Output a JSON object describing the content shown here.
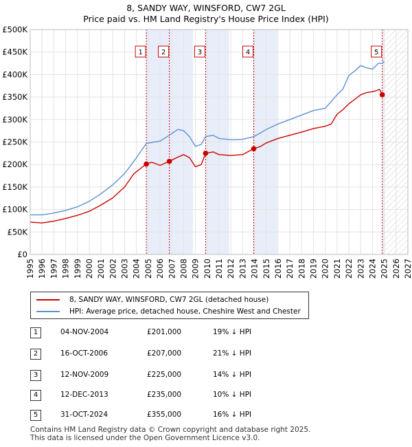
{
  "header": {
    "title": "8, SANDY WAY, WINSFORD, CW7 2GL",
    "subtitle": "Price paid vs. HM Land Registry's House Price Index (HPI)"
  },
  "chart_data": {
    "type": "line",
    "title": "8, SANDY WAY, WINSFORD, CW7 2GL",
    "subtitle": "Price paid vs. HM Land Registry's House Price Index (HPI)",
    "xlabel": "",
    "ylabel": "",
    "xlim": [
      1995,
      2027
    ],
    "ylim": [
      0,
      500000
    ],
    "x_ticks": [
      "1995",
      "1996",
      "1997",
      "1998",
      "1999",
      "2000",
      "2001",
      "2002",
      "2003",
      "2004",
      "2005",
      "2006",
      "2007",
      "2008",
      "2009",
      "2010",
      "2011",
      "2012",
      "2013",
      "2014",
      "2015",
      "2016",
      "2017",
      "2018",
      "2019",
      "2020",
      "2021",
      "2022",
      "2023",
      "2024",
      "2025",
      "2026",
      "2027"
    ],
    "y_ticks": [
      {
        "value": 0,
        "label": "£0"
      },
      {
        "value": 50000,
        "label": "£50K"
      },
      {
        "value": 100000,
        "label": "£100K"
      },
      {
        "value": 150000,
        "label": "£150K"
      },
      {
        "value": 200000,
        "label": "£200K"
      },
      {
        "value": 250000,
        "label": "£250K"
      },
      {
        "value": 300000,
        "label": "£300K"
      },
      {
        "value": 350000,
        "label": "£350K"
      },
      {
        "value": 400000,
        "label": "£400K"
      },
      {
        "value": 450000,
        "label": "£450K"
      },
      {
        "value": 500000,
        "label": "£500K"
      }
    ],
    "grid": true,
    "legend_position": "below chart",
    "hatched_after": 2025.0,
    "series": [
      {
        "name": "8, SANDY WAY, WINSFORD, CW7 2GL (detached house)",
        "color": "#cc0000",
        "x": [
          1995.0,
          1996.0,
          1997.0,
          1998.0,
          1999.0,
          2000.0,
          2001.0,
          2002.0,
          2003.0,
          2003.8,
          2004.84,
          2005.3,
          2006.0,
          2006.79,
          2007.4,
          2008.0,
          2008.5,
          2009.0,
          2009.5,
          2009.86,
          2010.5,
          2011.0,
          2012.0,
          2013.0,
          2013.94,
          2014.5,
          2015.0,
          2016.0,
          2017.0,
          2018.0,
          2019.0,
          2020.0,
          2020.5,
          2021.0,
          2021.5,
          2022.0,
          2022.5,
          2023.0,
          2023.5,
          2024.0,
          2024.3,
          2024.6,
          2024.83
        ],
        "y": [
          72000,
          70000,
          74000,
          80000,
          87000,
          96000,
          110000,
          126000,
          150000,
          180000,
          201000,
          205000,
          198000,
          207000,
          215000,
          222000,
          215000,
          195000,
          200000,
          225000,
          228000,
          222000,
          220000,
          222000,
          235000,
          240000,
          248000,
          258000,
          265000,
          272000,
          280000,
          285000,
          290000,
          312000,
          322000,
          335000,
          345000,
          355000,
          360000,
          362000,
          364000,
          367000,
          355000
        ]
      },
      {
        "name": "HPI: Average price, detached house, Cheshire West and Chester",
        "color": "#5b8fd6",
        "x": [
          1995.0,
          1996.0,
          1997.0,
          1998.0,
          1999.0,
          2000.0,
          2001.0,
          2002.0,
          2003.0,
          2004.0,
          2004.84,
          2005.5,
          2006.0,
          2006.79,
          2007.5,
          2008.0,
          2008.5,
          2009.0,
          2009.5,
          2009.86,
          2010.5,
          2011.0,
          2012.0,
          2013.0,
          2013.94,
          2014.5,
          2015.0,
          2016.0,
          2017.0,
          2018.0,
          2019.0,
          2020.0,
          2021.0,
          2021.5,
          2022.0,
          2022.5,
          2023.0,
          2023.5,
          2024.0,
          2024.5,
          2024.83,
          2025.0
        ],
        "y": [
          88000,
          88000,
          92000,
          98000,
          106000,
          118000,
          135000,
          155000,
          180000,
          215000,
          247000,
          250000,
          252000,
          265000,
          278000,
          275000,
          262000,
          240000,
          245000,
          262000,
          265000,
          258000,
          255000,
          256000,
          262000,
          270000,
          278000,
          290000,
          300000,
          310000,
          320000,
          325000,
          355000,
          368000,
          398000,
          408000,
          420000,
          415000,
          412000,
          425000,
          425000,
          430000
        ]
      }
    ],
    "sales": [
      {
        "n": "1",
        "x": 2004.84,
        "date": "04-NOV-2004",
        "price": 201000,
        "price_label": "£201,000",
        "hpi": "19% ↓ HPI"
      },
      {
        "n": "2",
        "x": 2006.79,
        "date": "16-OCT-2006",
        "price": 207000,
        "price_label": "£207,000",
        "hpi": "21% ↓ HPI"
      },
      {
        "n": "3",
        "x": 2009.86,
        "date": "12-NOV-2009",
        "price": 225000,
        "price_label": "£225,000",
        "hpi": "14% ↓ HPI"
      },
      {
        "n": "4",
        "x": 2013.94,
        "date": "12-DEC-2013",
        "price": 235000,
        "price_label": "£235,000",
        "hpi": "10% ↓ HPI"
      },
      {
        "n": "5",
        "x": 2024.83,
        "date": "31-OCT-2024",
        "price": 355000,
        "price_label": "£355,000",
        "hpi": "16% ↓ HPI"
      }
    ]
  },
  "legend": {
    "property_label": "8, SANDY WAY, WINSFORD, CW7 2GL (detached house)",
    "hpi_label": "HPI: Average price, detached house, Cheshire West and Chester",
    "property_color": "#cc0000",
    "hpi_color": "#5b8fd6"
  },
  "sales_table": [
    {
      "n": "1",
      "date": "04-NOV-2004",
      "price": "£201,000",
      "hpi": "19% ↓ HPI"
    },
    {
      "n": "2",
      "date": "16-OCT-2006",
      "price": "£207,000",
      "hpi": "21% ↓ HPI"
    },
    {
      "n": "3",
      "date": "12-NOV-2009",
      "price": "£225,000",
      "hpi": "14% ↓ HPI"
    },
    {
      "n": "4",
      "date": "12-DEC-2013",
      "price": "£235,000",
      "hpi": "10% ↓ HPI"
    },
    {
      "n": "5",
      "date": "31-OCT-2024",
      "price": "£355,000",
      "hpi": "16% ↓ HPI"
    }
  ],
  "footer": {
    "line1": "Contains HM Land Registry data © Crown copyright and database right 2025.",
    "line2": "This data is licensed under the Open Government Licence v3.0."
  }
}
